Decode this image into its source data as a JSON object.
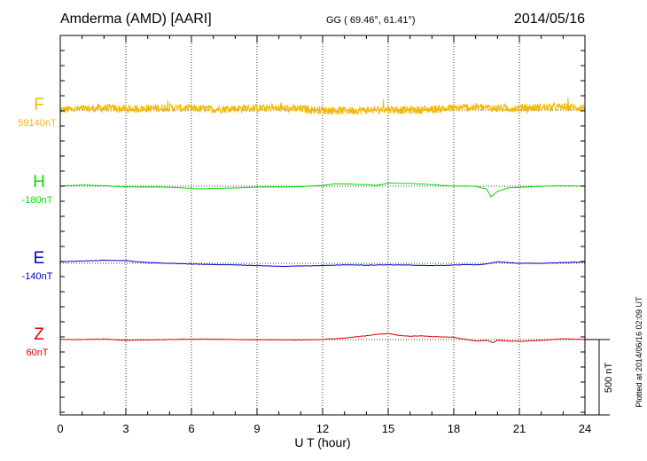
{
  "header": {
    "station": "Amderma (AMD)  [AARI]",
    "coords": "GG ( 69.46°,  61.41°)",
    "date": "2014/05/16"
  },
  "side_note": "Plotted at 2014/06/16 02:09 UT",
  "chart_data": {
    "type": "line",
    "title": "Amderma (AMD)  [AARI]",
    "xlabel": "U T (hour)",
    "xlim": [
      0,
      24
    ],
    "x_ticks": [
      "0",
      "3",
      "6",
      "9",
      "12",
      "15",
      "18",
      "21",
      "24"
    ],
    "grid": "vertical dotted lines every 3 h",
    "scale_bar": {
      "label": "500 nT",
      "value_nT": 500
    },
    "series": [
      {
        "name": "F",
        "baseline_label": "59140nT",
        "baseline_nT": 59140,
        "color": "#f5b800",
        "noisy": true,
        "x": [
          0,
          1,
          2,
          3,
          4,
          5,
          6,
          7,
          8,
          9,
          10,
          11,
          12,
          13,
          14,
          15,
          16,
          17,
          18,
          19,
          20,
          21,
          22,
          23,
          24
        ],
        "y": [
          0,
          8,
          12,
          6,
          10,
          15,
          8,
          5,
          10,
          12,
          10,
          6,
          -2,
          -4,
          -2,
          4,
          -2,
          4,
          12,
          18,
          10,
          12,
          16,
          18,
          14
        ]
      },
      {
        "name": "H",
        "baseline_label": "-180nT",
        "baseline_nT": -180,
        "color": "#00dd00",
        "noisy": false,
        "x": [
          0,
          0.5,
          1,
          2,
          3,
          4,
          5,
          6,
          6.5,
          7,
          8,
          9,
          10,
          11,
          12,
          12.5,
          13,
          14,
          14.5,
          15,
          16,
          17,
          18,
          18.5,
          19,
          19.5,
          19.7,
          20,
          20.5,
          21,
          22,
          23,
          24
        ],
        "y": [
          0,
          5,
          7,
          3,
          -5,
          -5,
          -7,
          -15,
          -18,
          -15,
          -12,
          -5,
          -5,
          -3,
          5,
          15,
          15,
          10,
          5,
          20,
          18,
          10,
          0,
          2,
          -2,
          -18,
          -70,
          -35,
          -10,
          -7,
          0,
          3,
          0
        ]
      },
      {
        "name": "E",
        "baseline_label": "-140nT",
        "baseline_nT": -140,
        "color": "#0000cc",
        "noisy": false,
        "x": [
          0,
          1,
          2,
          3,
          3.5,
          4,
          5,
          6,
          7,
          8,
          9,
          10,
          11,
          12,
          13,
          14,
          15,
          16,
          17,
          18,
          18.5,
          19,
          19.5,
          20,
          21,
          22,
          23,
          24
        ],
        "y": [
          10,
          15,
          20,
          18,
          10,
          5,
          0,
          -5,
          -8,
          -10,
          -15,
          -20,
          -18,
          -15,
          -10,
          -12,
          -10,
          -12,
          -15,
          -12,
          -8,
          -10,
          -5,
          10,
          0,
          0,
          5,
          10
        ]
      },
      {
        "name": "Z",
        "baseline_label": "60nT",
        "baseline_nT": 60,
        "color": "#dd0000",
        "noisy": false,
        "x": [
          0,
          1,
          2,
          3,
          4,
          5,
          6,
          7,
          8,
          9,
          10,
          11,
          12,
          13,
          14,
          14.5,
          15,
          15.5,
          16,
          16.5,
          17,
          18,
          19,
          19.5,
          19.8,
          20,
          20.5,
          21,
          22,
          23,
          24
        ],
        "y": [
          0,
          0,
          3,
          -5,
          -3,
          0,
          3,
          2,
          0,
          -2,
          -2,
          -3,
          0,
          10,
          25,
          35,
          40,
          28,
          22,
          25,
          20,
          15,
          -10,
          -5,
          -20,
          -5,
          -10,
          -12,
          -5,
          5,
          0
        ]
      }
    ]
  }
}
